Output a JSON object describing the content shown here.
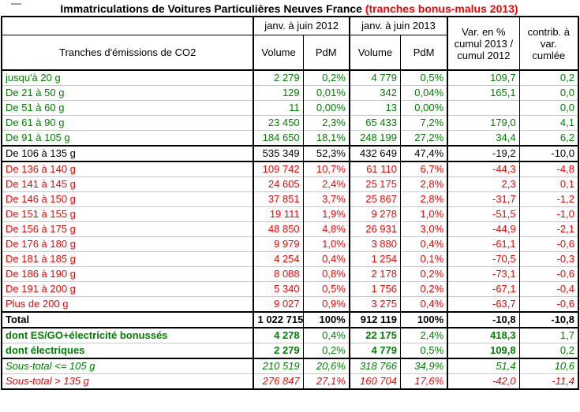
{
  "colors": {
    "green": "#008000",
    "red": "#FF0000",
    "black": "#000000",
    "grid_line": "#C6C6C6"
  },
  "title": {
    "main": "Immatriculations de Voitures Particulières Neuves France ",
    "highlight": "(tranches bonus-malus 2013)"
  },
  "header": {
    "period_2012": "janv. à juin 2012",
    "period_2013": "janv. à juin 2013",
    "tranches": "Tranches d'émissions de CO2",
    "volume": "Volume",
    "pdm": "PdM",
    "var_line1": "Var. en %",
    "var_line2": "cumul 2013 /",
    "var_line3": "cumul 2012",
    "contrib_line1": "contrib. à",
    "contrib_line2": "var.",
    "contrib_line3": "cumlée"
  },
  "table": {
    "rows": [
      {
        "cls": "green tt",
        "label": "jusqu'à 20 g",
        "v2012": "2 279",
        "pdm2012": "0,2%",
        "v2013": "4 779",
        "pdm2013": "0,5%",
        "var_pct": "109,7",
        "contrib": "0,2"
      },
      {
        "cls": "green",
        "label": "De 21 à 50 g",
        "v2012": "129",
        "pdm2012": "0,01%",
        "v2013": "342",
        "pdm2013": "0,04%",
        "var_pct": "165,1",
        "contrib": "0,0"
      },
      {
        "cls": "green",
        "label": "De 51 à 60 g",
        "v2012": "11",
        "pdm2012": "0,00%",
        "v2013": "13",
        "pdm2013": "0,00%",
        "var_pct": "",
        "contrib": "0,0"
      },
      {
        "cls": "green",
        "label": "De 61 à 90 g",
        "v2012": "23 450",
        "pdm2012": "2,3%",
        "v2013": "65 433",
        "pdm2013": "7,2%",
        "var_pct": "179,0",
        "contrib": "4,1"
      },
      {
        "cls": "green",
        "label": "De 91 à 105 g",
        "v2012": "184 650",
        "pdm2012": "18,1%",
        "v2013": "248 199",
        "pdm2013": "27,2%",
        "var_pct": "34,4",
        "contrib": "6,2"
      },
      {
        "cls": "neutral tt",
        "label": "De 106 à 135 g",
        "v2012": "535 349",
        "pdm2012": "52,3%",
        "v2013": "432 649",
        "pdm2013": "47,4%",
        "var_pct": "-19,2",
        "contrib": "-10,0"
      },
      {
        "cls": "red tt",
        "label": "De 136 à 140 g",
        "v2012": "109 742",
        "pdm2012": "10,7%",
        "v2013": "61 110",
        "pdm2013": "6,7%",
        "var_pct": "-44,3",
        "contrib": "-4,8"
      },
      {
        "cls": "red",
        "label": "De 141 à 145 g",
        "v2012": "24 605",
        "pdm2012": "2,4%",
        "v2013": "25 175",
        "pdm2013": "2,8%",
        "var_pct": "2,3",
        "contrib": "0,1"
      },
      {
        "cls": "red",
        "label": "De 146 à 150 g",
        "v2012": "37 851",
        "pdm2012": "3,7%",
        "v2013": "25 867",
        "pdm2013": "2,8%",
        "var_pct": "-31,7",
        "contrib": "-1,2"
      },
      {
        "cls": "red",
        "label": "De 151 à 155 g",
        "v2012": "19 111",
        "pdm2012": "1,9%",
        "v2013": "9 278",
        "pdm2013": "1,0%",
        "var_pct": "-51,5",
        "contrib": "-1,0"
      },
      {
        "cls": "red",
        "label": "De 156 à 175 g",
        "v2012": "48 850",
        "pdm2012": "4,8%",
        "v2013": "26 931",
        "pdm2013": "3,0%",
        "var_pct": "-44,9",
        "contrib": "-2,1"
      },
      {
        "cls": "red",
        "label": "De 176 à 180 g",
        "v2012": "9 979",
        "pdm2012": "1,0%",
        "v2013": "3 880",
        "pdm2013": "0,4%",
        "var_pct": "-61,1",
        "contrib": "-0,6"
      },
      {
        "cls": "red",
        "label": "De 181 à 185 g",
        "v2012": "4 254",
        "pdm2012": "0,4%",
        "v2013": "1 254",
        "pdm2013": "0,1%",
        "var_pct": "-70,5",
        "contrib": "-0,3"
      },
      {
        "cls": "red",
        "label": "De 186 à 190 g",
        "v2012": "8 088",
        "pdm2012": "0,8%",
        "v2013": "2 178",
        "pdm2013": "0,2%",
        "var_pct": "-73,1",
        "contrib": "-0,6"
      },
      {
        "cls": "red",
        "label": "De 191 à 200 g",
        "v2012": "5 340",
        "pdm2012": "0,5%",
        "v2013": "1 756",
        "pdm2013": "0,2%",
        "var_pct": "-67,1",
        "contrib": "-0,4"
      },
      {
        "cls": "red",
        "label": "Plus de 200 g",
        "v2012": "9 027",
        "pdm2012": "0,9%",
        "v2013": "3 275",
        "pdm2013": "0,4%",
        "var_pct": "-63,7",
        "contrib": "-0,6"
      },
      {
        "cls": "total tt",
        "label": "Total",
        "v2012": "1 022 715",
        "pdm2012": "100%",
        "v2013": "912 119",
        "pdm2013": "100%",
        "var_pct": "-10,8",
        "contrib": "-10,8"
      },
      {
        "cls": "dont tt",
        "label": "dont ES/GO+électricité bonussés",
        "v2012": "4 278",
        "pdm2012": "0,4%",
        "v2013": "22 175",
        "pdm2013": "2,4%",
        "var_pct": "418,3",
        "contrib": "1,7"
      },
      {
        "cls": "dont",
        "label": "dont électriques",
        "v2012": "2 279",
        "pdm2012": "0,2%",
        "v2013": "4 779",
        "pdm2013": "0,5%",
        "var_pct": "109,8",
        "contrib": "0,2"
      },
      {
        "cls": "igreen tt",
        "label": "Sous-total <= 105 g",
        "v2012": "210 519",
        "pdm2012": "20,6%",
        "v2013": "318 766",
        "pdm2013": "34,9%",
        "var_pct": "51,4",
        "contrib": "10,6"
      },
      {
        "cls": "ired",
        "label": "Sous-total > 135 g",
        "v2012": "276 847",
        "pdm2012": "27,1%",
        "v2013": "160 704",
        "pdm2013": "17,6%",
        "var_pct": "-42,0",
        "contrib": "-11,4"
      }
    ]
  }
}
